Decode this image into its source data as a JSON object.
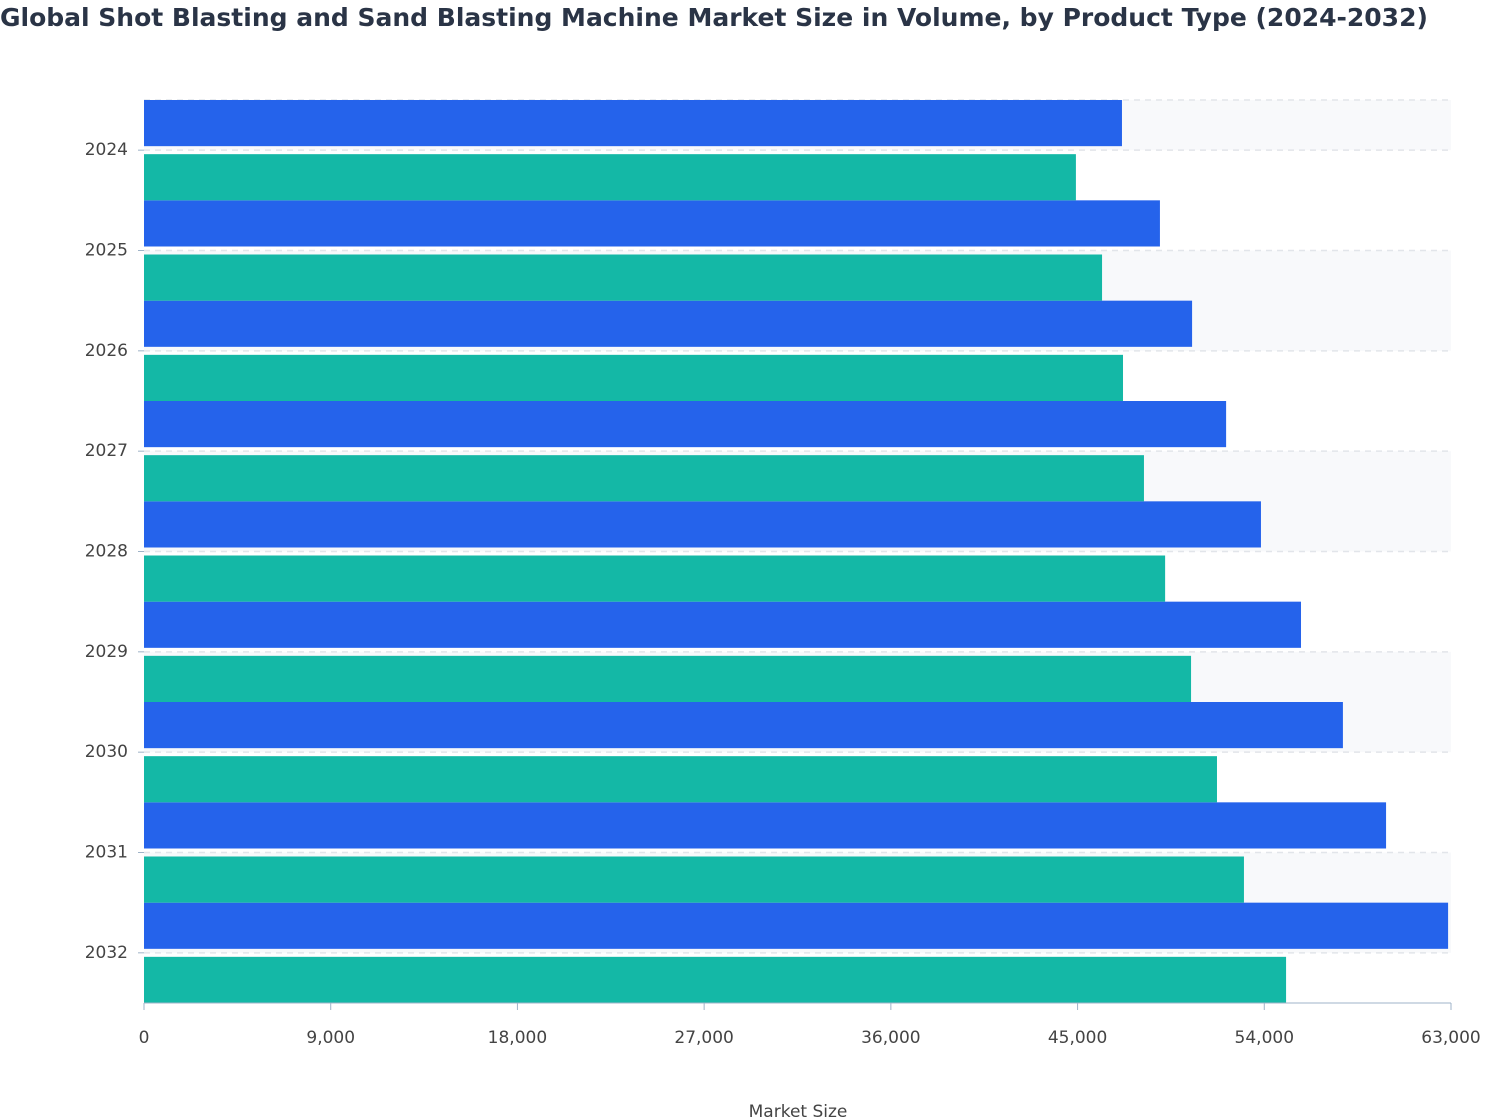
{
  "chart_data": {
    "type": "hbar",
    "title": "Global Shot Blasting and Sand Blasting Machine Market Size in Volume, by Product Type (2024-2032)",
    "x_label": "Market Size",
    "categories": [
      "2024",
      "2025",
      "2026",
      "2027",
      "2028",
      "2029",
      "2030",
      "2031",
      "2032"
    ],
    "series": [
      {
        "color": "#2563eb",
        "values": [
          47140,
          48970,
          50520,
          52160,
          53840,
          55770,
          57790,
          59870,
          62860
        ]
      },
      {
        "color": "#14b8a6",
        "values": [
          44920,
          46180,
          47190,
          48200,
          49220,
          50470,
          51720,
          53020,
          55050
        ]
      }
    ],
    "xlim": [
      0,
      63000
    ],
    "xticks": [
      0,
      {
        "value": 9000,
        "label": "9,000"
      },
      {
        "value": 18000,
        "label": "18,000"
      },
      {
        "value": 27000,
        "label": "27,000"
      },
      {
        "value": 36000,
        "label": "36,000"
      },
      {
        "value": 45000,
        "label": "45,000"
      },
      {
        "value": 54000,
        "label": "54,000"
      },
      {
        "value": 63000,
        "label": "63,000"
      }
    ],
    "grid": true
  }
}
